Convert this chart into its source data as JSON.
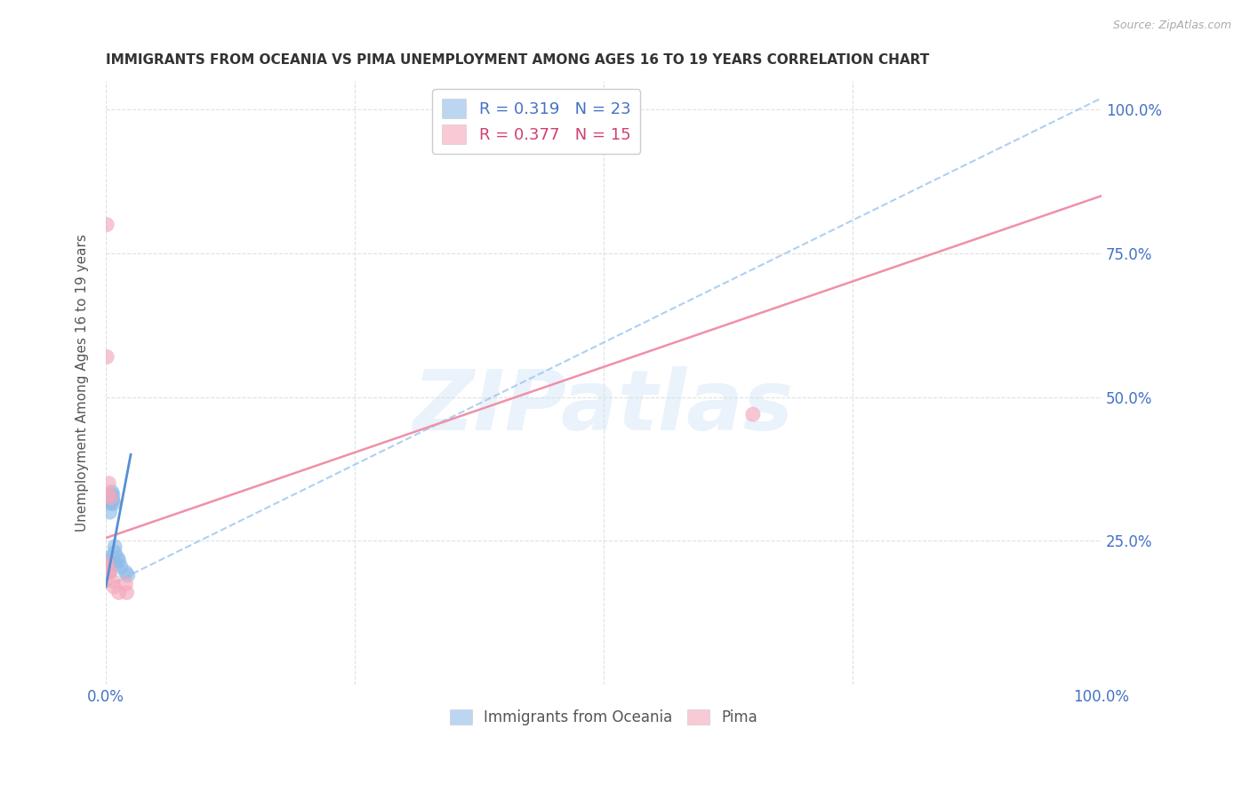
{
  "title": "IMMIGRANTS FROM OCEANIA VS PIMA UNEMPLOYMENT AMONG AGES 16 TO 19 YEARS CORRELATION CHART",
  "source": "Source: ZipAtlas.com",
  "ylabel": "Unemployment Among Ages 16 to 19 years",
  "xlim": [
    0.0,
    1.0
  ],
  "ylim": [
    0.0,
    1.05
  ],
  "blue_R": "0.319",
  "blue_N": "23",
  "pink_R": "0.377",
  "pink_N": "15",
  "blue_color": "#90bce8",
  "pink_color": "#f4a8bc",
  "blue_scatter_x": [
    0.001,
    0.001,
    0.002,
    0.002,
    0.003,
    0.003,
    0.004,
    0.004,
    0.005,
    0.005,
    0.006,
    0.006,
    0.007,
    0.007,
    0.008,
    0.009,
    0.009,
    0.01,
    0.012,
    0.013,
    0.015,
    0.02,
    0.022
  ],
  "blue_scatter_y": [
    0.21,
    0.22,
    0.215,
    0.205,
    0.205,
    0.195,
    0.3,
    0.32,
    0.315,
    0.32,
    0.325,
    0.335,
    0.32,
    0.33,
    0.315,
    0.23,
    0.24,
    0.21,
    0.22,
    0.215,
    0.205,
    0.195,
    0.19
  ],
  "pink_scatter_x": [
    0.0,
    0.001,
    0.001,
    0.002,
    0.003,
    0.003,
    0.004,
    0.005,
    0.007,
    0.008,
    0.013,
    0.02,
    0.021,
    0.65,
    0.001
  ],
  "pink_scatter_y": [
    0.205,
    0.21,
    0.57,
    0.33,
    0.35,
    0.195,
    0.195,
    0.325,
    0.18,
    0.17,
    0.16,
    0.175,
    0.16,
    0.47,
    0.8
  ],
  "blue_solid_line_x": [
    0.0,
    0.025
  ],
  "blue_solid_line_y": [
    0.17,
    0.4
  ],
  "blue_dashed_line_x": [
    0.0,
    1.0
  ],
  "blue_dashed_line_y": [
    0.17,
    1.02
  ],
  "pink_solid_line_x": [
    0.0,
    1.0
  ],
  "pink_solid_line_y": [
    0.255,
    0.85
  ],
  "watermark_text": "ZIPatlas",
  "legend_blue_label": "R = 0.319   N = 23",
  "legend_pink_label": "R = 0.377   N = 15",
  "legend_blue_patch_color": "#90bce8",
  "legend_pink_patch_color": "#f4a8bc",
  "legend_blue_text_color": "#4472c4",
  "legend_pink_text_color": "#d04070",
  "title_color": "#333333",
  "axis_label_color": "#555555",
  "right_tick_color": "#4472c4",
  "bottom_tick_color": "#4472c4",
  "grid_color": "#e0e0e0",
  "background_color": "#ffffff",
  "xtick_positions": [
    0.0,
    0.25,
    0.5,
    0.75,
    1.0
  ],
  "xtick_labels": [
    "0.0%",
    "",
    "",
    "",
    "100.0%"
  ],
  "ytick_right_positions": [
    0.25,
    0.5,
    0.75,
    1.0
  ],
  "ytick_right_labels": [
    "25.0%",
    "50.0%",
    "75.0%",
    "100.0%"
  ],
  "bottom_legend_blue_label": "Immigrants from Oceania",
  "bottom_legend_pink_label": "Pima"
}
